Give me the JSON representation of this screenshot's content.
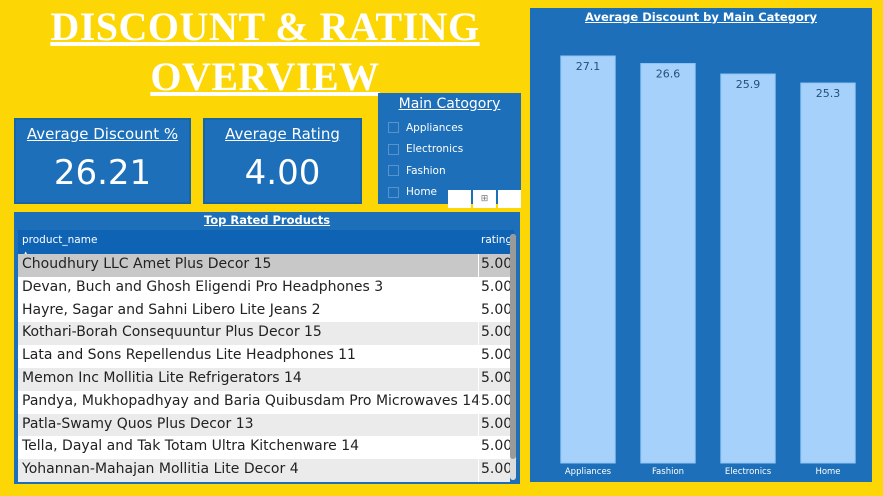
{
  "header": {
    "title_line1": "DISCOUNT & RATING",
    "title_line2": "OVERVIEW"
  },
  "kpis": {
    "avg_discount": {
      "label": "Average Discount %",
      "value": "26.21"
    },
    "avg_rating": {
      "label": "Average Rating",
      "value": "4.00"
    }
  },
  "slicer": {
    "title": "Main Catogory",
    "items": [
      {
        "label": "Appliances"
      },
      {
        "label": "Electronics"
      },
      {
        "label": "Fashion"
      },
      {
        "label": "Home"
      }
    ]
  },
  "table": {
    "title": "Top Rated Products",
    "columns": [
      "product_name",
      "rating"
    ],
    "rows": [
      {
        "name": "Choudhury LLC Amet Plus Decor 15",
        "rating": "5.00"
      },
      {
        "name": "Devan, Buch and Ghosh Eligendi Pro Headphones 3",
        "rating": "5.00"
      },
      {
        "name": "Hayre, Sagar and Sahni Libero Lite Jeans 2",
        "rating": "5.00"
      },
      {
        "name": "Kothari-Borah Consequuntur Plus Decor 15",
        "rating": "5.00"
      },
      {
        "name": "Lata and Sons Repellendus Lite Headphones 11",
        "rating": "5.00"
      },
      {
        "name": "Memon Inc Mollitia Lite Refrigerators 14",
        "rating": "5.00"
      },
      {
        "name": "Pandya, Mukhopadhyay and Baria Quibusdam Pro Microwaves 14",
        "rating": "5.00"
      },
      {
        "name": "Patla-Swamy Quos Plus Decor 13",
        "rating": "5.00"
      },
      {
        "name": "Tella, Dayal and Tak Totam Ultra Kitchenware 14",
        "rating": "5.00"
      },
      {
        "name": "Yohannan-Mahajan Mollitia Lite Decor 4",
        "rating": "5.00"
      }
    ]
  },
  "colors": {
    "background": "#FDD705",
    "panel": "#1C6FB8",
    "bar": "#A6D1FB",
    "row_selected": "#C8C8C8",
    "row_odd": "#EBEBEB",
    "row_even": "#FFFFFF"
  },
  "chart_data": {
    "type": "bar",
    "title": "Average Discount by Main Category",
    "categories": [
      "Appliances",
      "Fashion",
      "Electronics",
      "Home"
    ],
    "values": [
      27.1,
      26.6,
      25.9,
      25.3
    ],
    "data_labels": [
      "27.1",
      "26.6",
      "25.9",
      "25.3"
    ],
    "xlabel": "",
    "ylabel": "",
    "ylim": [
      0,
      27.1
    ],
    "grid": false
  }
}
